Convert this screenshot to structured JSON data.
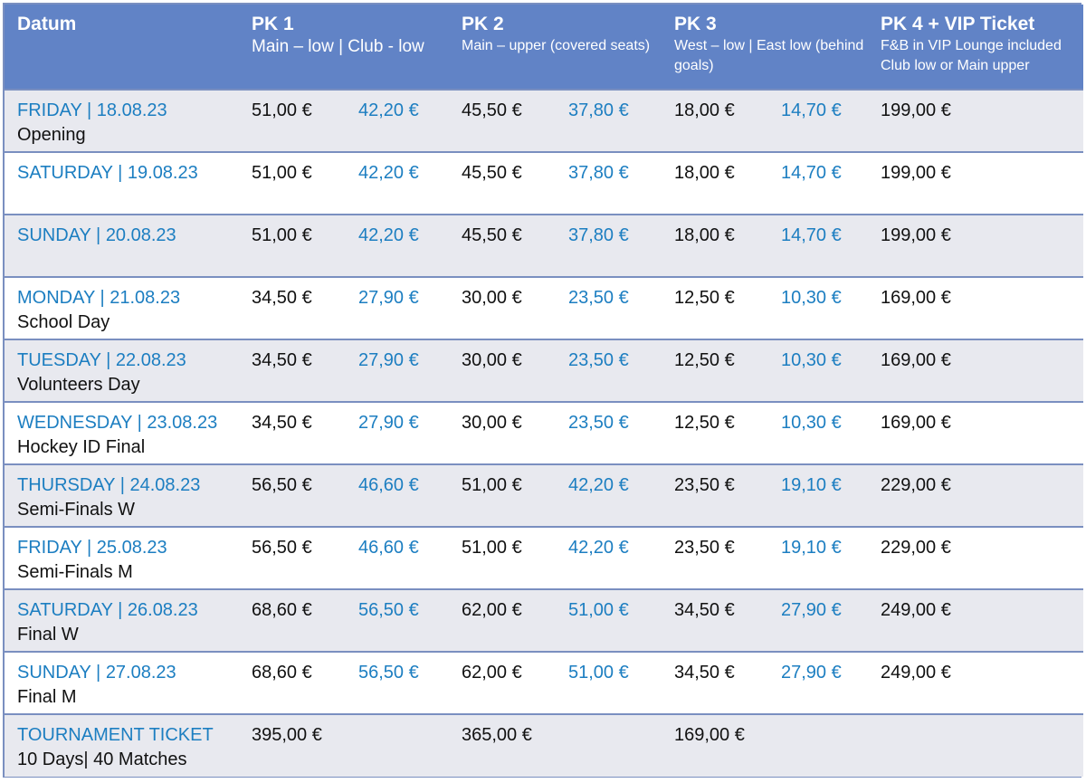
{
  "header": {
    "datum": "Datum",
    "pk1": {
      "title": "PK 1",
      "sub": "Main – low | Club  - low"
    },
    "pk2": {
      "title": "PK 2",
      "sub": "Main – upper (covered seats)"
    },
    "pk3": {
      "title": "PK 3",
      "sub": "West – low | East low (behind goals)"
    },
    "pk4": {
      "title": "PK 4 + VIP Ticket",
      "sub1": "F&B in VIP Lounge included",
      "sub2": "Club low or Main  upper"
    }
  },
  "rows": [
    {
      "day": "FRIDAY | 18.08.23",
      "note": "Opening",
      "pk1": "51,00 €",
      "pk1r": "42,20 €",
      "pk2": "45,50 €",
      "pk2r": "37,80 €",
      "pk3": "18,00 €",
      "pk3r": "14,70 €",
      "pk4": "199,00 €"
    },
    {
      "day": "SATURDAY | 19.08.23",
      "note": "",
      "pk1": "51,00 €",
      "pk1r": "42,20 €",
      "pk2": "45,50 €",
      "pk2r": "37,80 €",
      "pk3": "18,00 €",
      "pk3r": "14,70 €",
      "pk4": "199,00 €"
    },
    {
      "day": "SUNDAY | 20.08.23",
      "note": "",
      "pk1": "51,00 €",
      "pk1r": "42,20 €",
      "pk2": "45,50 €",
      "pk2r": "37,80 €",
      "pk3": "18,00 €",
      "pk3r": "14,70 €",
      "pk4": "199,00 €"
    },
    {
      "day": "MONDAY | 21.08.23",
      "note": "School Day",
      "pk1": "34,50 €",
      "pk1r": "27,90 €",
      "pk2": "30,00 €",
      "pk2r": "23,50 €",
      "pk3": "12,50 €",
      "pk3r": "10,30 €",
      "pk4": "169,00 €"
    },
    {
      "day": "TUESDAY | 22.08.23",
      "note": "Volunteers Day",
      "pk1": "34,50 €",
      "pk1r": "27,90 €",
      "pk2": "30,00 €",
      "pk2r": "23,50 €",
      "pk3": "12,50 €",
      "pk3r": "10,30 €",
      "pk4": "169,00 €"
    },
    {
      "day": "WEDNESDAY | 23.08.23",
      "note": "Hockey ID Final",
      "pk1": "34,50 €",
      "pk1r": "27,90 €",
      "pk2": "30,00 €",
      "pk2r": "23,50 €",
      "pk3": "12,50 €",
      "pk3r": "10,30 €",
      "pk4": "169,00 €"
    },
    {
      "day": "THURSDAY | 24.08.23",
      "note": "Semi-Finals W",
      "pk1": "56,50 €",
      "pk1r": "46,60 €",
      "pk2": "51,00 €",
      "pk2r": "42,20 €",
      "pk3": "23,50 €",
      "pk3r": "19,10 €",
      "pk4": "229,00 €"
    },
    {
      "day": "FRIDAY | 25.08.23",
      "note": "Semi-Finals M",
      "pk1": "56,50 €",
      "pk1r": "46,60 €",
      "pk2": "51,00 €",
      "pk2r": "42,20 €",
      "pk3": "23,50 €",
      "pk3r": "19,10 €",
      "pk4": "229,00 €"
    },
    {
      "day": "SATURDAY | 26.08.23",
      "note": "Final W",
      "pk1": "68,60 €",
      "pk1r": "56,50 €",
      "pk2": "62,00 €",
      "pk2r": "51,00 €",
      "pk3": "34,50 €",
      "pk3r": "27,90 €",
      "pk4": "249,00 €"
    },
    {
      "day": "SUNDAY | 27.08.23",
      "note": "Final M",
      "pk1": "68,60 €",
      "pk1r": "56,50 €",
      "pk2": "62,00 €",
      "pk2r": "51,00 €",
      "pk3": "34,50 €",
      "pk3r": "27,90 €",
      "pk4": "249,00 €"
    },
    {
      "day": "TOURNAMENT TICKET",
      "note": "10 Days| 40 Matches",
      "pk1": "395,00 €",
      "pk1r": "",
      "pk2": "365,00 €",
      "pk2r": "",
      "pk3": "169,00 €",
      "pk3r": "",
      "pk4": ""
    }
  ],
  "colors": {
    "header_bg": "#6183c6",
    "accent_blue": "#1c7ec1",
    "row_alt": "#e8e9ef",
    "border": "#7a8fc0"
  }
}
